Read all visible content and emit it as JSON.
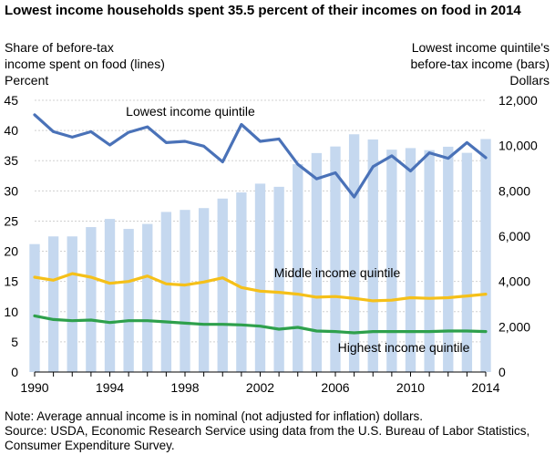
{
  "chart_data": {
    "type": "combo-bar-line",
    "title": "Lowest income households spent 35.5 percent of their incomes on food in 2014",
    "x": [
      1990,
      1991,
      1992,
      1993,
      1994,
      1995,
      1996,
      1997,
      1998,
      1999,
      2000,
      2001,
      2002,
      2003,
      2004,
      2005,
      2006,
      2007,
      2008,
      2009,
      2010,
      2011,
      2012,
      2013,
      2014
    ],
    "x_tick_labels": [
      "1990",
      "1994",
      "1998",
      "2002",
      "2006",
      "2010",
      "2014"
    ],
    "x_ticks": [
      1990,
      1994,
      1998,
      2002,
      2006,
      2010,
      2014
    ],
    "left_axis": {
      "title_lines": [
        "Share of before-tax",
        "income spent on food (lines)"
      ],
      "unit": "Percent",
      "ylim": [
        0,
        45
      ],
      "ticks": [
        0,
        5,
        10,
        15,
        20,
        25,
        30,
        35,
        40,
        45
      ],
      "tick_labels": [
        "0",
        "5",
        "10",
        "15",
        "20",
        "25",
        "30",
        "35",
        "40",
        "45"
      ]
    },
    "right_axis": {
      "title_lines": [
        "Lowest income quintile's",
        "before-tax income (bars)"
      ],
      "unit": "Dollars",
      "ylim": [
        0,
        12000
      ],
      "ticks": [
        0,
        2000,
        4000,
        6000,
        8000,
        10000,
        12000
      ],
      "tick_labels": [
        "0",
        "2,000",
        "4,000",
        "6,000",
        "8,000",
        "10,000",
        "12,000"
      ]
    },
    "bars": {
      "color": "#c5d8ef",
      "values": [
        5650,
        5990,
        5990,
        6400,
        6760,
        6320,
        6540,
        7070,
        7160,
        7240,
        7660,
        7930,
        8320,
        8180,
        9180,
        9670,
        9960,
        10500,
        10270,
        9820,
        9890,
        9800,
        9950,
        9680,
        10290
      ]
    },
    "series": [
      {
        "name": "Lowest income quintile",
        "color": "#4a72b8",
        "values": [
          42.6,
          39.8,
          38.9,
          39.8,
          37.6,
          39.7,
          40.6,
          38.0,
          38.2,
          37.4,
          34.8,
          41.0,
          38.2,
          38.6,
          34.4,
          32.0,
          33.0,
          29.0,
          34.0,
          35.8,
          33.3,
          36.3,
          35.4,
          38.0,
          35.5
        ]
      },
      {
        "name": "Middle income quintile",
        "color": "#f5c019",
        "values": [
          15.7,
          15.2,
          16.3,
          15.7,
          14.7,
          15.0,
          15.9,
          14.6,
          14.4,
          14.9,
          15.6,
          14.0,
          13.4,
          13.2,
          12.9,
          12.4,
          12.5,
          12.2,
          11.8,
          11.9,
          12.3,
          12.2,
          12.3,
          12.6,
          12.9
        ]
      },
      {
        "name": "Highest income quintile",
        "color": "#2ea04c",
        "values": [
          9.3,
          8.7,
          8.5,
          8.6,
          8.2,
          8.5,
          8.5,
          8.3,
          8.1,
          7.9,
          7.9,
          7.8,
          7.6,
          7.1,
          7.4,
          6.8,
          6.7,
          6.5,
          6.7,
          6.7,
          6.7,
          6.7,
          6.8,
          6.8,
          6.7
        ]
      }
    ],
    "grid": "horizontal"
  },
  "notes": {
    "note": "Note: Average annual income is in nominal (not adjusted for inflation) dollars.",
    "source_lines": [
      "Source: USDA, Economic Research Service using data from the U.S. Bureau of Labor Statistics,",
      "Consumer Expenditure Survey."
    ]
  }
}
